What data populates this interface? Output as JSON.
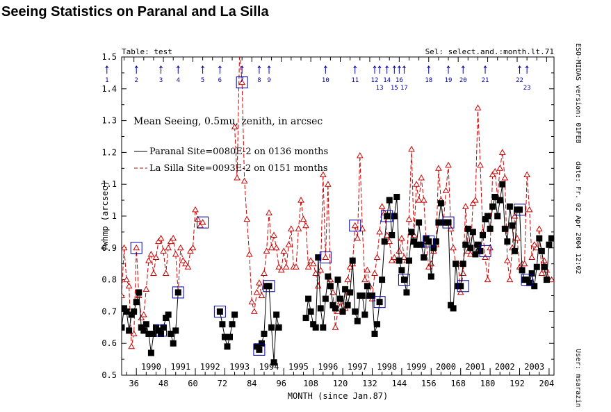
{
  "chart_data": {
    "type": "line",
    "title": "Seeing Statistics on Paranal and La Silla",
    "xlabel": "MONTH (since Jan.87)",
    "ylabel": "fwhmp (arcsec)",
    "xlim": [
      31,
      207
    ],
    "ylim": [
      0.5,
      1.5
    ],
    "xticks": [
      "36",
      "48",
      "60",
      "72",
      "84",
      "96",
      "108",
      "120",
      "132",
      "144",
      "156",
      "168",
      "180",
      "192",
      "204"
    ],
    "yticks": [
      "0.5",
      "0.6",
      "0.7",
      "0.8",
      "0.9",
      "1",
      "1.1",
      "1.2",
      "1.3",
      "1.4",
      "1.5"
    ],
    "year_labels": [
      "1990",
      "1991",
      "1992",
      "1993",
      "1994",
      "1995",
      "1996",
      "1997",
      "1998",
      "1999",
      "2000",
      "2001",
      "2002",
      "2003"
    ],
    "annotation": "Mean Seeing, 0.5mu, zenith, in arcsec",
    "table_label": "Table: test",
    "selection_label": "Sel: select.and.:month.lt.71",
    "legend_placement": "upper-left",
    "colors": {
      "paranal": "#000000",
      "lasilla": "#cc0000",
      "events": "#0000a0"
    },
    "series": [
      {
        "name": "Paranal Site=0080E-2 on 0136 months",
        "style": "solid line, filled black squares",
        "segments": [
          {
            "start_month": 31,
            "values": [
              0.65,
              0.71,
              0.7,
              0.64,
              0.69,
              0.7,
              0.73,
              0.76,
              0.65,
              0.64,
              0.66,
              0.63,
              0.57,
              0.63,
              0.65,
              0.64,
              0.63,
              0.65,
              0.68,
              0.69,
              0.63,
              0.6,
              0.64,
              0.76
            ]
          },
          {
            "start_month": 71,
            "values": [
              0.7,
              0.66,
              0.62,
              0.59,
              0.62,
              0.66,
              0.69
            ]
          },
          {
            "start_month": 86,
            "values": [
              0.59,
              0.58,
              0.6,
              0.63,
              0.78,
              0.78,
              0.65,
              0.54,
              0.69,
              0.65
            ]
          },
          {
            "start_month": 106,
            "values": [
              0.68,
              0.74,
              0.7,
              0.66,
              0.65,
              0.87,
              0.71,
              0.65,
              0.74,
              0.81,
              0.78,
              0.72,
              0.71,
              0.8,
              0.74,
              0.7,
              0.77,
              0.72,
              0.76,
              0.86,
              0.7,
              0.67,
              0.75,
              0.75,
              0.69,
              0.78,
              0.75,
              0.75,
              0.63,
              0.66,
              0.73,
              0.8,
              0.92,
              1.0,
              1.05,
              0.94,
              1.0,
              1.06,
              0.86,
              0.83,
              0.8,
              0.76,
              0.86,
              0.95,
              0.92,
              0.91,
              0.98,
              0.91,
              0.87,
              0.93,
              0.92,
              0.81,
              0.9,
              0.92,
              0.98,
              1.04,
              0.98,
              0.98,
              0.98,
              0.72,
              0.71,
              0.85,
              0.78,
              0.78,
              0.85,
              0.91,
              0.96,
              0.9,
              0.95,
              0.88,
              0.91,
              0.89,
              0.94,
              0.99,
              1.0,
              0.96,
              1.03,
              1.06,
              1.0,
              1.05,
              1.1,
              0.96,
              0.92,
              1.03,
              0.97,
              0.89,
              1.02,
              1.02,
              0.83,
              0.8,
              0.8,
              0.79,
              0.82,
              0.78,
              0.84,
              0.93,
              0.89,
              0.84,
              0.8,
              0.91,
              0.93
            ]
          }
        ]
      },
      {
        "name": "La Silla Site=0093E-2 on 0151 months",
        "style": "dashed line, open red triangles",
        "segments": [
          {
            "start_month": 31,
            "values": [
              0.75,
              0.9,
              0.8,
              0.78,
              0.59,
              0.63,
              0.9,
              0.75,
              0.68,
              0.69,
              0.77,
              0.86,
              0.88,
              0.82,
              0.87,
              0.92,
              0.93,
              0.89,
              0.82,
              0.9,
              0.92,
              0.93,
              0.88,
              0.76,
              0.9,
              0.86,
              0.85,
              0.84,
              0.89,
              0.9,
              1.02,
              0.99,
              0.97,
              0.98
            ]
          },
          {
            "start_month": 77,
            "values": [
              1.28,
              1.12,
              1.52,
              1.42,
              1.11,
              0.99,
              0.88,
              0.73,
              0.7,
              0.76,
              0.79,
              0.75,
              0.82,
              0.89,
              1.01,
              0.9,
              0.94,
              0.9,
              0.84,
              0.83,
              0.89,
              0.84,
              0.91,
              0.96,
              0.84,
              0.84,
              0.96,
              1.05,
              0.99,
              0.97,
              0.84,
              0.86,
              0.85,
              0.82,
              0.78,
              0.83,
              1.13,
              0.87,
              1.1,
              0.8,
              0.76,
              0.65,
              0.7,
              0.73,
              0.7,
              0.71,
              0.8,
              0.84,
              0.85,
              0.97,
              0.93,
              1.19,
              0.96,
              0.8,
              0.83,
              0.78,
              0.74,
              0.82,
              0.87,
              0.95,
              1.03,
              1.01,
              0.94,
              0.92,
              0.86,
              0.87,
              0.86,
              0.89,
              0.93,
              0.87,
              0.86,
              0.99,
              1.21,
              0.94,
              1.1,
              1.05,
              1.12,
              1.05,
              0.92,
              0.84,
              0.85,
              0.89,
              0.91,
              1.15,
              1.05,
              0.98,
              1.08,
              1.16,
              0.96,
              0.9,
              0.85,
              0.85,
              0.76,
              0.82,
              1.03,
              0.89,
              0.88,
              1.04,
              1.05,
              1.34,
              1.16,
              0.95,
              0.87,
              0.8,
              0.9,
              1.13,
              1.14,
              1.06,
              1.15,
              1.2,
              1.12,
              0.86,
              0.8,
              0.9,
              1.0,
              0.93,
              0.84,
              0.85,
              0.85,
              1.13,
              1.02,
              0.87,
              0.91,
              0.9,
              0.96,
              0.82,
              0.86,
              0.83,
              0.8,
              0.8
            ]
          }
        ]
      }
    ],
    "events": [
      {
        "label": "1",
        "month": 25,
        "marked_value": null
      },
      {
        "label": "2",
        "month": 37,
        "marked_value": 0.9
      },
      {
        "label": "3",
        "month": 47,
        "marked_value": 0.64
      },
      {
        "label": "4",
        "month": 54,
        "marked_value": 0.76
      },
      {
        "label": "5",
        "month": 64,
        "marked_value": 0.98
      },
      {
        "label": "6",
        "month": 71,
        "marked_value": 0.7
      },
      {
        "label": "7",
        "month": 80,
        "marked_value": 1.42
      },
      {
        "label": "8",
        "month": 87,
        "marked_value": 0.58
      },
      {
        "label": "9",
        "month": 91,
        "marked_value": 0.78
      },
      {
        "label": "10",
        "month": 114,
        "marked_value": 0.87
      },
      {
        "label": "11",
        "month": 126,
        "marked_value": 0.97
      },
      {
        "label": "12",
        "month": 134,
        "marked_value": null
      },
      {
        "label": "13",
        "month": 136,
        "marked_value": 0.73
      },
      {
        "label": "14",
        "month": 139,
        "marked_value": 1.0
      },
      {
        "label": "15",
        "month": 142,
        "marked_value": null
      },
      {
        "label": "16",
        "month": 144,
        "marked_value": null
      },
      {
        "label": "17",
        "month": 146,
        "marked_value": 0.8
      },
      {
        "label": "18",
        "month": 156,
        "marked_value": 0.92
      },
      {
        "label": "19",
        "month": 164,
        "marked_value": 0.98
      },
      {
        "label": "20",
        "month": 170,
        "marked_value": 0.78
      },
      {
        "label": "21",
        "month": 179,
        "marked_value": 0.89
      },
      {
        "label": "22",
        "month": 193,
        "marked_value": 1.02
      },
      {
        "label": "23",
        "month": 196,
        "marked_value": 0.8
      }
    ]
  },
  "side_info": {
    "version": "ESO-MIDAS version: 01FEB",
    "date": "date: Fr. 02 Apr 2004 12:02",
    "user": "User: msarazin"
  }
}
